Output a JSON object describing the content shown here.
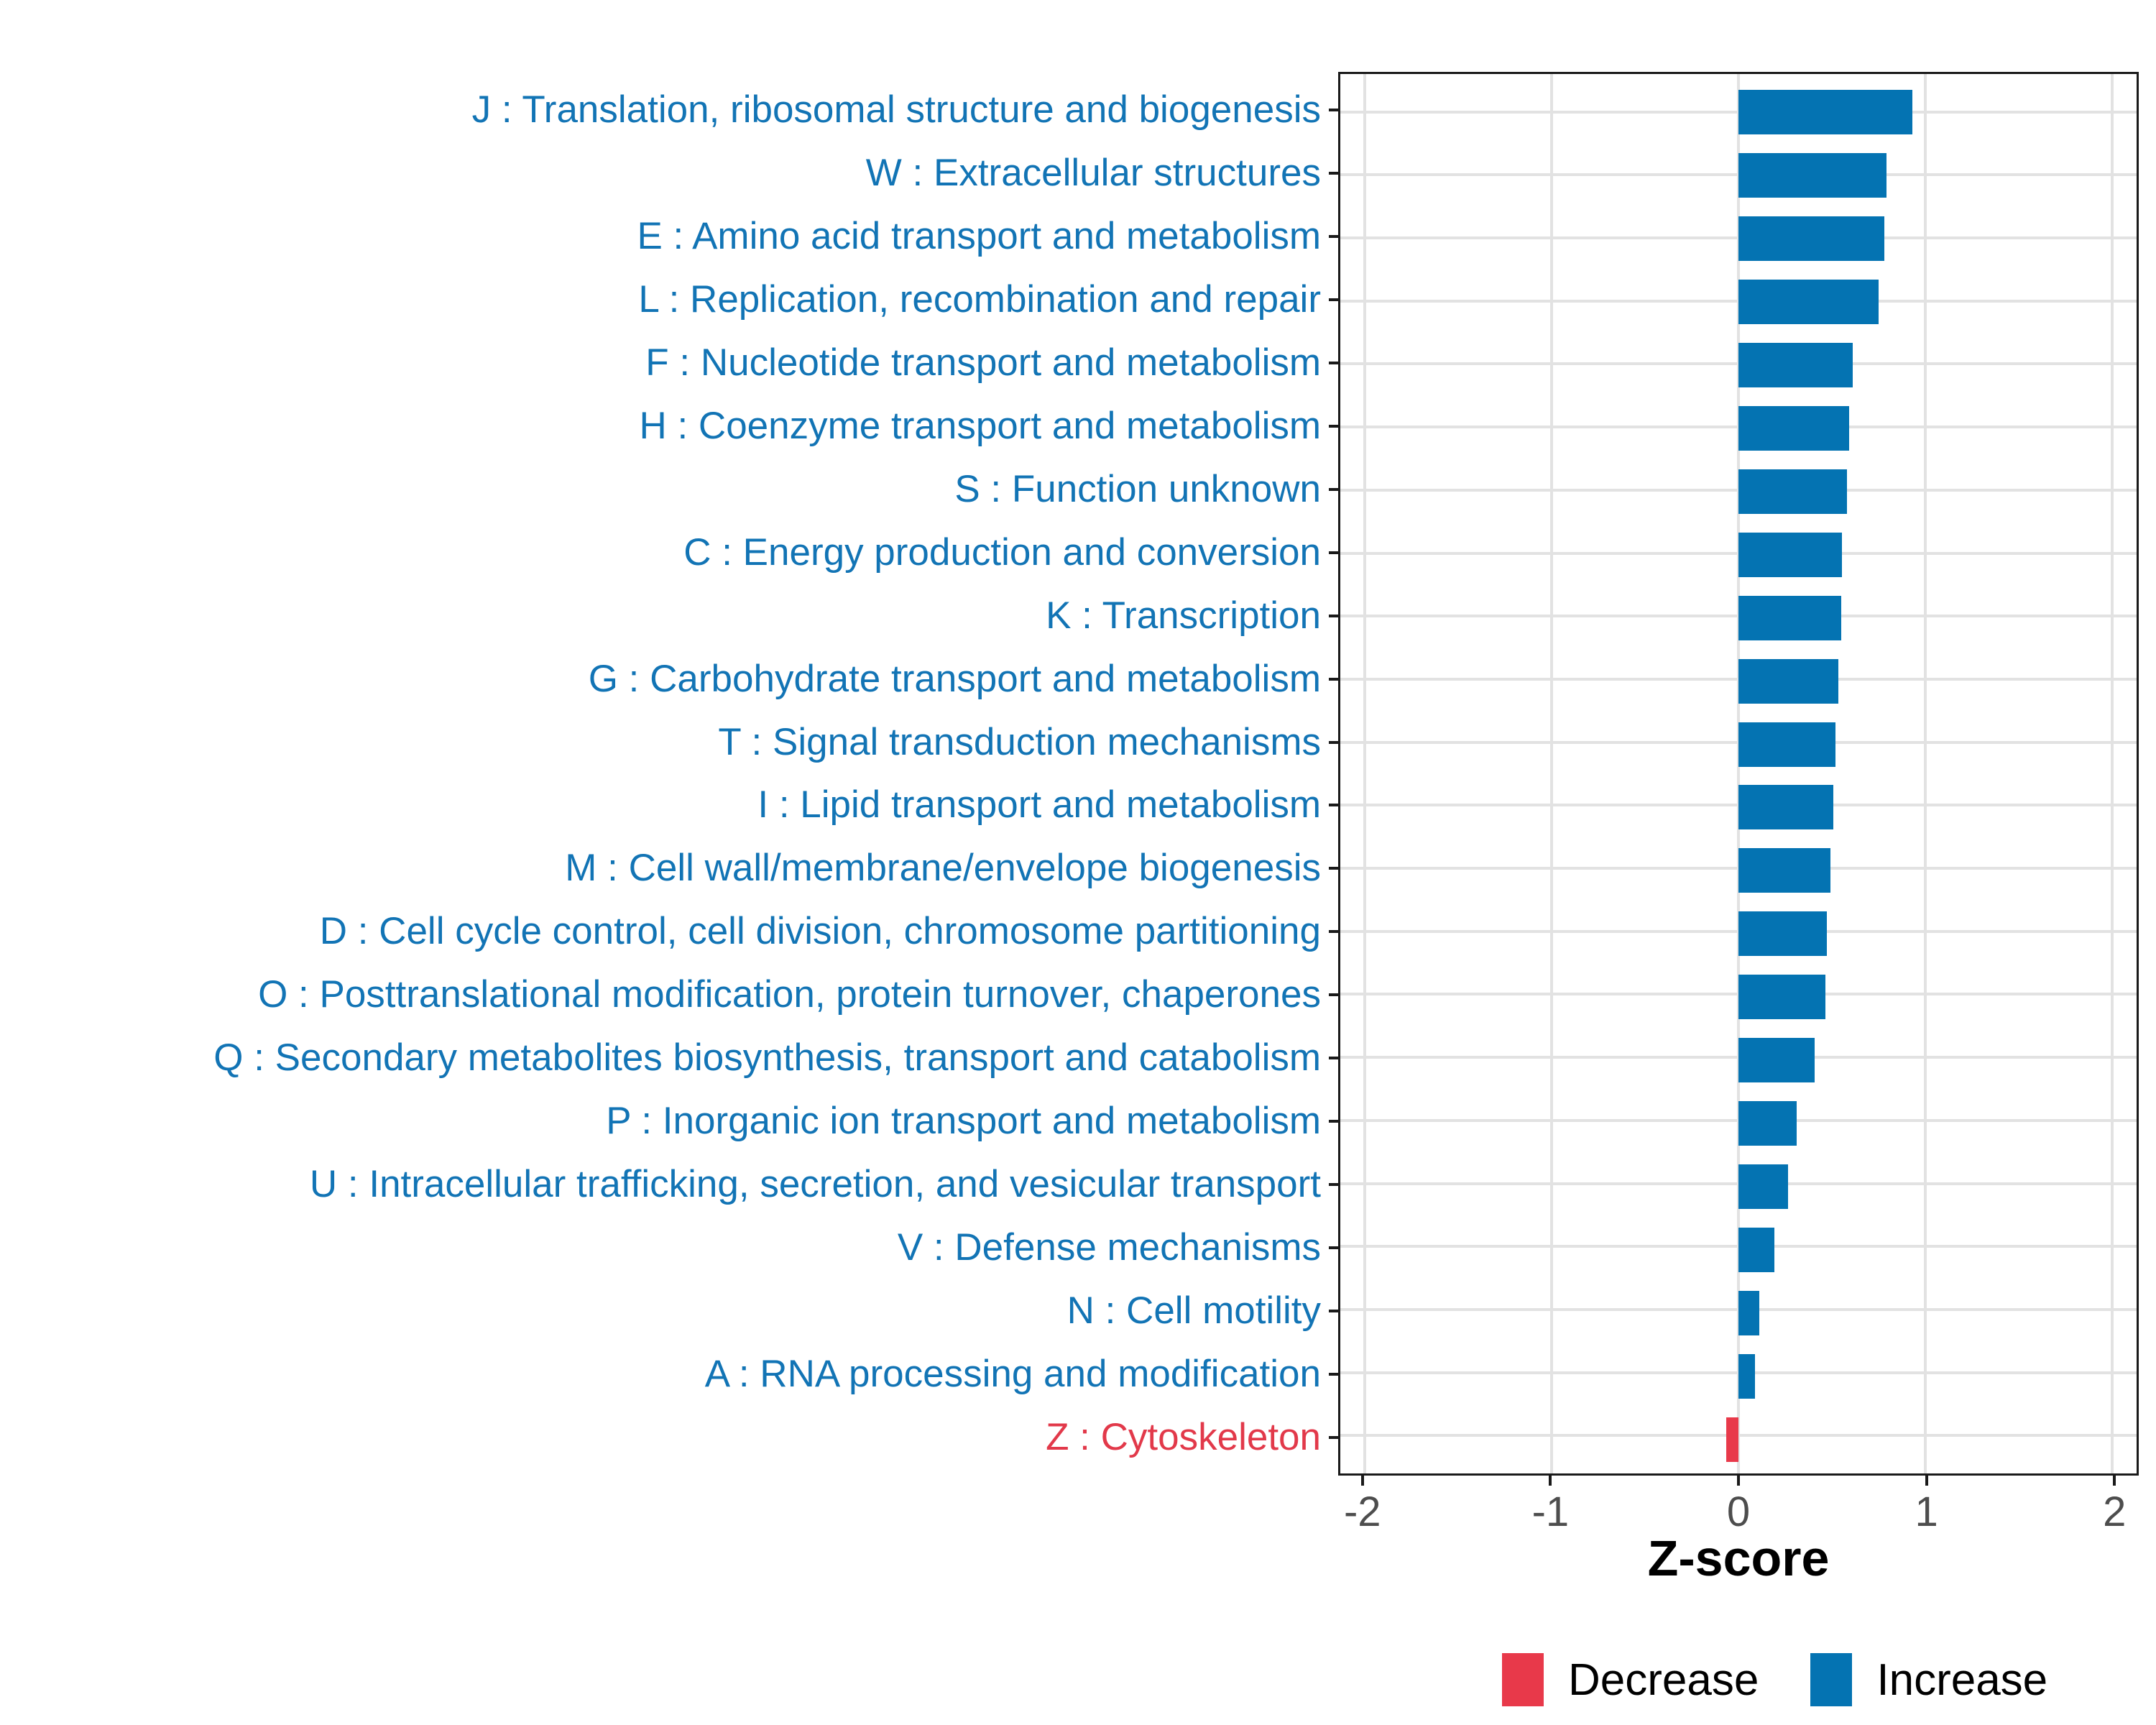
{
  "chart_data": {
    "type": "bar",
    "orientation": "horizontal",
    "title": "",
    "xlabel": "Z-score",
    "ylabel": "",
    "x_tick_labels": [
      "-2",
      "-1",
      "0",
      "1",
      "2"
    ],
    "x_tick_values": [
      -2,
      -1,
      0,
      1,
      2
    ],
    "xlim": [
      -2.129,
      2.129
    ],
    "grid": "major-only",
    "legend_position": "bottom-right",
    "categories": [
      {
        "label": "J : Translation, ribosomal structure and biogenesis",
        "value": 0.93,
        "group": "Increase"
      },
      {
        "label": "W : Extracellular structures",
        "value": 0.79,
        "group": "Increase"
      },
      {
        "label": "E : Amino acid transport and metabolism",
        "value": 0.78,
        "group": "Increase"
      },
      {
        "label": "L : Replication, recombination and repair",
        "value": 0.75,
        "group": "Increase"
      },
      {
        "label": "F : Nucleotide transport and metabolism",
        "value": 0.61,
        "group": "Increase"
      },
      {
        "label": "H : Coenzyme transport and metabolism",
        "value": 0.59,
        "group": "Increase"
      },
      {
        "label": "S : Function unknown",
        "value": 0.58,
        "group": "Increase"
      },
      {
        "label": "C : Energy production and conversion",
        "value": 0.554,
        "group": "Increase"
      },
      {
        "label": "K : Transcription",
        "value": 0.548,
        "group": "Increase"
      },
      {
        "label": "G : Carbohydrate transport and metabolism",
        "value": 0.535,
        "group": "Increase"
      },
      {
        "label": "T : Signal transduction mechanisms",
        "value": 0.52,
        "group": "Increase"
      },
      {
        "label": "I : Lipid transport and metabolism",
        "value": 0.506,
        "group": "Increase"
      },
      {
        "label": "M : Cell wall/membrane/envelope biogenesis",
        "value": 0.49,
        "group": "Increase"
      },
      {
        "label": "D : Cell cycle control, cell division, chromosome partitioning",
        "value": 0.471,
        "group": "Increase"
      },
      {
        "label": "O : Posttranslational modification, protein turnover, chaperones",
        "value": 0.465,
        "group": "Increase"
      },
      {
        "label": "Q : Secondary metabolites biosynthesis, transport and catabolism",
        "value": 0.408,
        "group": "Increase"
      },
      {
        "label": "P : Inorganic ion transport and metabolism",
        "value": 0.312,
        "group": "Increase"
      },
      {
        "label": "U : Intracellular trafficking, secretion, and vesicular transport",
        "value": 0.265,
        "group": "Increase"
      },
      {
        "label": "V : Defense mechanisms",
        "value": 0.192,
        "group": "Increase"
      },
      {
        "label": "N : Cell motility",
        "value": 0.112,
        "group": "Increase"
      },
      {
        "label": "A : RNA processing and modification",
        "value": 0.088,
        "group": "Increase"
      },
      {
        "label": "Z : Cytoskeleton",
        "value": -0.067,
        "group": "Decrease"
      }
    ],
    "legend": [
      {
        "label": "Decrease",
        "group": "Decrease"
      },
      {
        "label": "Increase",
        "group": "Increase"
      }
    ]
  },
  "colors": {
    "increase": "#0473B2",
    "decrease": "#E8394A",
    "label_increase": "#1274B5",
    "label_decrease": "#E2394A",
    "grid": "#E2E2E2",
    "panel_border": "#1A1A1A",
    "tick_mark": "#1A1A1A",
    "tick_label": "#4D4D4D",
    "axis_title": "#000000",
    "background": "#FFFFFF"
  }
}
